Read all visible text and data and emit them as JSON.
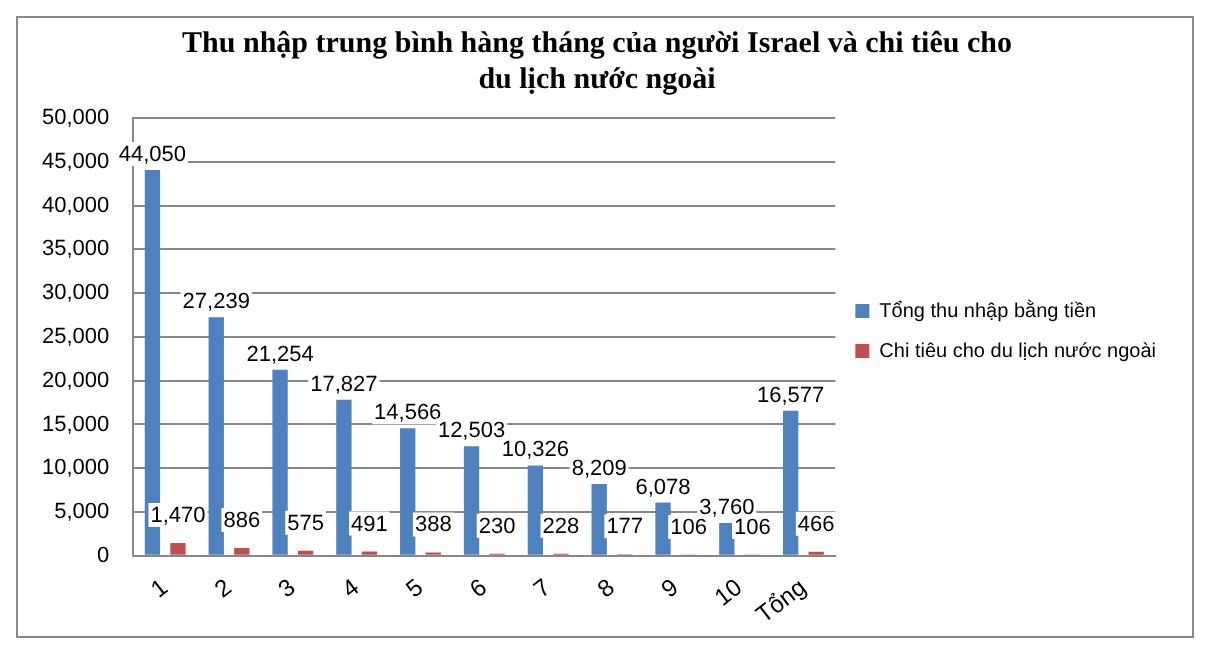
{
  "chart_data": {
    "type": "bar",
    "title": "Thu nhập trung bình hàng tháng của người Israel và chi tiêu cho du lịch nước ngoài",
    "categories": [
      "1",
      "2",
      "3",
      "4",
      "5",
      "6",
      "7",
      "8",
      "9",
      "10",
      "Tổng"
    ],
    "series": [
      {
        "name": "Tổng thu nhập bằng tiền",
        "color": "#4f81bd",
        "values": [
          44050,
          27239,
          21254,
          17827,
          14566,
          12503,
          10326,
          8209,
          6078,
          3760,
          16577
        ],
        "value_labels": [
          "44,050",
          "27,239",
          "21,254",
          "17,827",
          "14,566",
          "12,503",
          "10,326",
          "8,209",
          "6,078",
          "3,760",
          "16,577"
        ]
      },
      {
        "name": "Chi tiêu cho du lịch nước ngoài",
        "color": "#c0504d",
        "values": [
          1470,
          886,
          575,
          491,
          388,
          230,
          228,
          177,
          106,
          106,
          466
        ],
        "value_labels": [
          "1,470",
          "886",
          "575",
          "491",
          "388",
          "230",
          "228",
          "177",
          "106",
          "106",
          "466"
        ]
      }
    ],
    "ylim": [
      0,
      50000
    ],
    "yticks": [
      {
        "value": 0,
        "label": "0"
      },
      {
        "value": 5000,
        "label": "5,000"
      },
      {
        "value": 10000,
        "label": "10,000"
      },
      {
        "value": 15000,
        "label": "15,000"
      },
      {
        "value": 20000,
        "label": "20,000"
      },
      {
        "value": 25000,
        "label": "25,000"
      },
      {
        "value": 30000,
        "label": "30,000"
      },
      {
        "value": 35000,
        "label": "35,000"
      },
      {
        "value": 40000,
        "label": "40,000"
      },
      {
        "value": 45000,
        "label": "45,000"
      },
      {
        "value": 50000,
        "label": "50,000"
      }
    ],
    "grid": "y",
    "legend": "right"
  }
}
